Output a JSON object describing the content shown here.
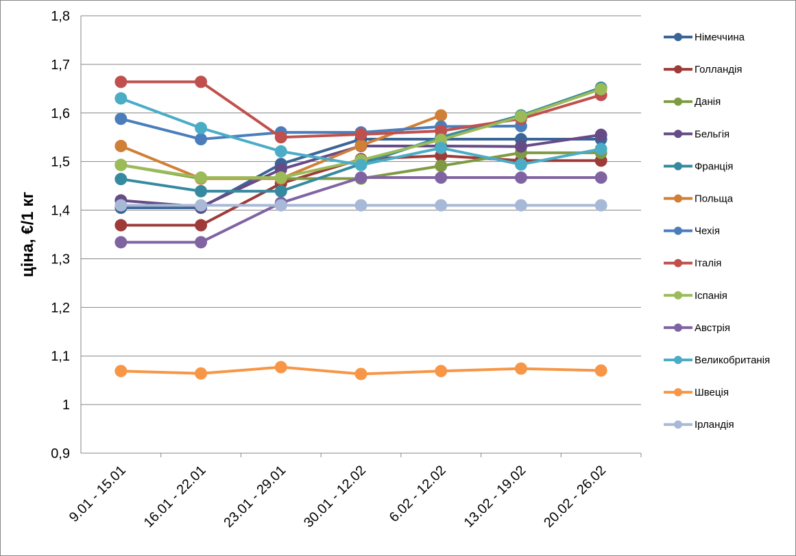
{
  "chart_data": {
    "type": "line",
    "title": "",
    "xlabel": "",
    "ylabel": "ціна, €/1 кг",
    "ylim": [
      0.9,
      1.8
    ],
    "ytick_step": 0.1,
    "yticks": [
      "0,9",
      "1",
      "1,1",
      "1,2",
      "1,3",
      "1,4",
      "1,5",
      "1,6",
      "1,7",
      "1,8"
    ],
    "grid": true,
    "legend_position": "right",
    "categories": [
      "9.01 - 15.01",
      "16.01 - 22.01",
      "23.01 - 29.01",
      "30.01 - 12.02",
      "6.02 - 12.02",
      "13.02 - 19.02",
      "20.02 - 26.02"
    ],
    "series": [
      {
        "name": "Німеччина",
        "color": "#3B6497",
        "values": [
          1.405,
          1.405,
          1.495,
          1.546,
          1.546,
          1.546,
          1.546
        ]
      },
      {
        "name": "Голландія",
        "color": "#9E3B38",
        "values": [
          1.369,
          1.369,
          1.455,
          1.505,
          1.512,
          1.502,
          1.502
        ]
      },
      {
        "name": "Данія",
        "color": "#7E9B43",
        "values": [
          1.493,
          1.465,
          1.465,
          1.465,
          1.491,
          1.518,
          1.518
        ]
      },
      {
        "name": "Бельгія",
        "color": "#664B86",
        "values": [
          1.42,
          1.407,
          1.484,
          1.532,
          1.532,
          1.531,
          1.555
        ]
      },
      {
        "name": "Франція",
        "color": "#368A9F",
        "values": [
          1.464,
          1.439,
          1.439,
          1.495,
          1.55,
          1.595,
          1.652
        ]
      },
      {
        "name": "Польща",
        "color": "#D07F36",
        "values": [
          1.532,
          1.465,
          1.465,
          1.533,
          1.595,
          null,
          null
        ]
      },
      {
        "name": "Чехія",
        "color": "#4A7EBB",
        "values": [
          1.588,
          1.546,
          1.56,
          1.56,
          1.572,
          1.573,
          null
        ]
      },
      {
        "name": "Італія",
        "color": "#C0504D",
        "values": [
          1.664,
          1.664,
          1.55,
          1.556,
          1.563,
          1.588,
          1.637
        ]
      },
      {
        "name": "Іспанія",
        "color": "#9BBB59",
        "values": [
          1.493,
          1.467,
          1.467,
          1.503,
          1.545,
          1.593,
          1.649
        ]
      },
      {
        "name": "Австрія",
        "color": "#8064A2",
        "values": [
          1.334,
          1.334,
          1.415,
          1.467,
          1.467,
          1.467,
          1.467
        ]
      },
      {
        "name": "Великобританія",
        "color": "#4BACC6",
        "values": [
          1.63,
          1.569,
          1.521,
          1.493,
          1.528,
          1.494,
          1.526
        ]
      },
      {
        "name": "Швеція",
        "color": "#F79646",
        "values": [
          1.069,
          1.064,
          1.077,
          1.063,
          1.069,
          1.074,
          1.07
        ]
      },
      {
        "name": "Ірландія",
        "color": "#A7B9D6",
        "values": [
          1.41,
          1.41,
          1.41,
          1.41,
          1.41,
          1.41,
          1.41
        ]
      }
    ]
  }
}
